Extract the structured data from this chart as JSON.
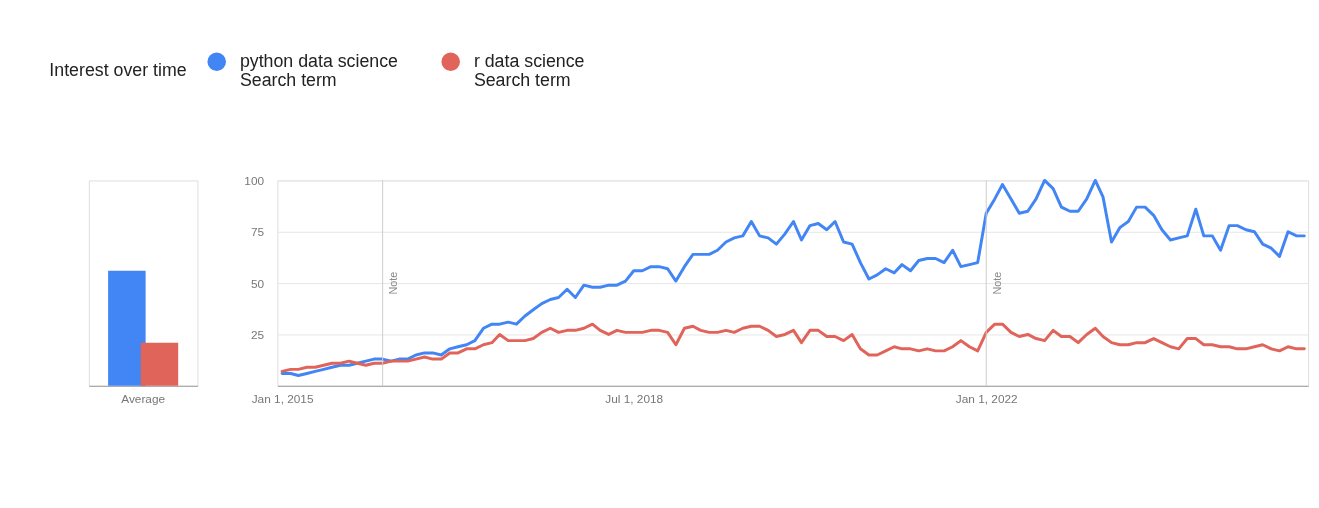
{
  "chart_data": [
    {
      "type": "bar",
      "categories": [
        "Average"
      ],
      "ylim": [
        0,
        100
      ],
      "tick_labels": "x",
      "legend_title": "Interest over time",
      "legend": "top right",
      "annotations": [
        "Search term",
        "Search term"
      ],
      "series": [
        {
          "name": "python data science",
          "color": "#4285f4",
          "values": [
            56
          ]
        },
        {
          "name": "r data science",
          "color": "#e0645a",
          "values": [
            21
          ]
        }
      ]
    },
    {
      "type": "line",
      "x": [
        "2015-01",
        "2015-02",
        "2015-03",
        "2015-04",
        "2015-05",
        "2015-06",
        "2015-07",
        "2015-08",
        "2015-09",
        "2015-10",
        "2015-11",
        "2015-12",
        "2016-01",
        "2016-02",
        "2016-03",
        "2016-04",
        "2016-05",
        "2016-06",
        "2016-07",
        "2016-08",
        "2016-09",
        "2016-10",
        "2016-11",
        "2016-12",
        "2017-01",
        "2017-02",
        "2017-03",
        "2017-04",
        "2017-05",
        "2017-06",
        "2017-07",
        "2017-08",
        "2017-09",
        "2017-10",
        "2017-11",
        "2017-12",
        "2018-01",
        "2018-02",
        "2018-03",
        "2018-04",
        "2018-05",
        "2018-06",
        "2018-07",
        "2018-08",
        "2018-09",
        "2018-10",
        "2018-11",
        "2018-12",
        "2019-01",
        "2019-02",
        "2019-03",
        "2019-04",
        "2019-05",
        "2019-06",
        "2019-07",
        "2019-08",
        "2019-09",
        "2019-10",
        "2019-11",
        "2019-12",
        "2020-01",
        "2020-02",
        "2020-03",
        "2020-04",
        "2020-05",
        "2020-06",
        "2020-07",
        "2020-08",
        "2020-09",
        "2020-10",
        "2020-11",
        "2020-12",
        "2021-01",
        "2021-02",
        "2021-03",
        "2021-04",
        "2021-05",
        "2021-06",
        "2021-07",
        "2021-08",
        "2021-09",
        "2021-10",
        "2021-11",
        "2021-12",
        "2022-01",
        "2022-02",
        "2022-03",
        "2022-04",
        "2022-05",
        "2022-06",
        "2022-07",
        "2022-08",
        "2022-09",
        "2022-10",
        "2022-11",
        "2022-12",
        "2023-01",
        "2023-02",
        "2023-03",
        "2023-04",
        "2023-05",
        "2023-06",
        "2023-07",
        "2023-08",
        "2023-09",
        "2023-10",
        "2023-11",
        "2023-12",
        "2024-01",
        "2024-02",
        "2024-03",
        "2024-04",
        "2024-05",
        "2024-06",
        "2024-07",
        "2024-08",
        "2024-09",
        "2024-10",
        "2024-11",
        "2024-12",
        "2025-01",
        "2025-02",
        "2025-03"
      ],
      "xlim": [
        "2014-12-15",
        "2025-03-15"
      ],
      "xticks": [
        {
          "value": "2015-01-01",
          "label": "Jan 1, 2015"
        },
        {
          "value": "2018-07-01",
          "label": "Jul 1, 2018"
        },
        {
          "value": "2022-01-01",
          "label": "Jan 1, 2022"
        }
      ],
      "ylim": [
        0,
        100
      ],
      "yticks": [
        25,
        50,
        75,
        100
      ],
      "grid": "y",
      "ref_lines": [
        {
          "axis": "x",
          "value": "2016-01-01",
          "label": "Note"
        },
        {
          "axis": "x",
          "value": "2022-01-01",
          "label": "Note"
        }
      ],
      "series": [
        {
          "name": "python data science",
          "color": "#4285f4",
          "values": [
            6,
            6,
            5,
            6,
            7,
            8,
            9,
            10,
            10,
            11,
            12,
            13,
            13,
            12,
            13,
            13,
            15,
            16,
            16,
            15,
            18,
            19,
            20,
            22,
            28,
            30,
            30,
            31,
            30,
            34,
            37,
            40,
            42,
            43,
            47,
            43,
            49,
            48,
            48,
            49,
            49,
            51,
            56,
            56,
            58,
            58,
            57,
            51,
            58,
            64,
            64,
            64,
            66,
            70,
            72,
            73,
            80,
            73,
            72,
            69,
            74,
            80,
            71,
            78,
            79,
            76,
            80,
            70,
            69,
            60,
            52,
            54,
            57,
            55,
            59,
            56,
            61,
            62,
            62,
            60,
            66,
            58,
            59,
            60,
            84,
            91,
            98,
            91,
            84,
            85,
            91,
            100,
            96,
            87,
            85,
            85,
            91,
            100,
            92,
            70,
            77,
            80,
            87,
            87,
            83,
            76,
            71,
            72,
            73,
            86,
            73,
            73,
            66,
            78,
            78,
            76,
            75,
            69,
            67,
            63,
            75,
            73,
            73
          ]
        },
        {
          "name": "r data science",
          "color": "#e0645a",
          "values": [
            7,
            8,
            8,
            9,
            9,
            10,
            11,
            11,
            12,
            11,
            10,
            11,
            11,
            12,
            12,
            12,
            13,
            14,
            13,
            13,
            16,
            16,
            18,
            18,
            20,
            21,
            25,
            22,
            22,
            22,
            23,
            26,
            28,
            26,
            27,
            27,
            28,
            30,
            27,
            25,
            27,
            26,
            26,
            26,
            27,
            27,
            26,
            20,
            28,
            29,
            27,
            26,
            26,
            27,
            26,
            28,
            29,
            29,
            27,
            24,
            25,
            27,
            21,
            27,
            27,
            24,
            24,
            22,
            25,
            18,
            15,
            15,
            17,
            19,
            18,
            18,
            17,
            18,
            17,
            17,
            19,
            22,
            19,
            17,
            26,
            30,
            30,
            26,
            24,
            25,
            23,
            22,
            27,
            24,
            24,
            21,
            25,
            28,
            24,
            21,
            20,
            20,
            21,
            21,
            23,
            21,
            19,
            18,
            23,
            23,
            20,
            20,
            19,
            19,
            18,
            18,
            19,
            20,
            18,
            17,
            19,
            18,
            18
          ]
        }
      ]
    }
  ]
}
